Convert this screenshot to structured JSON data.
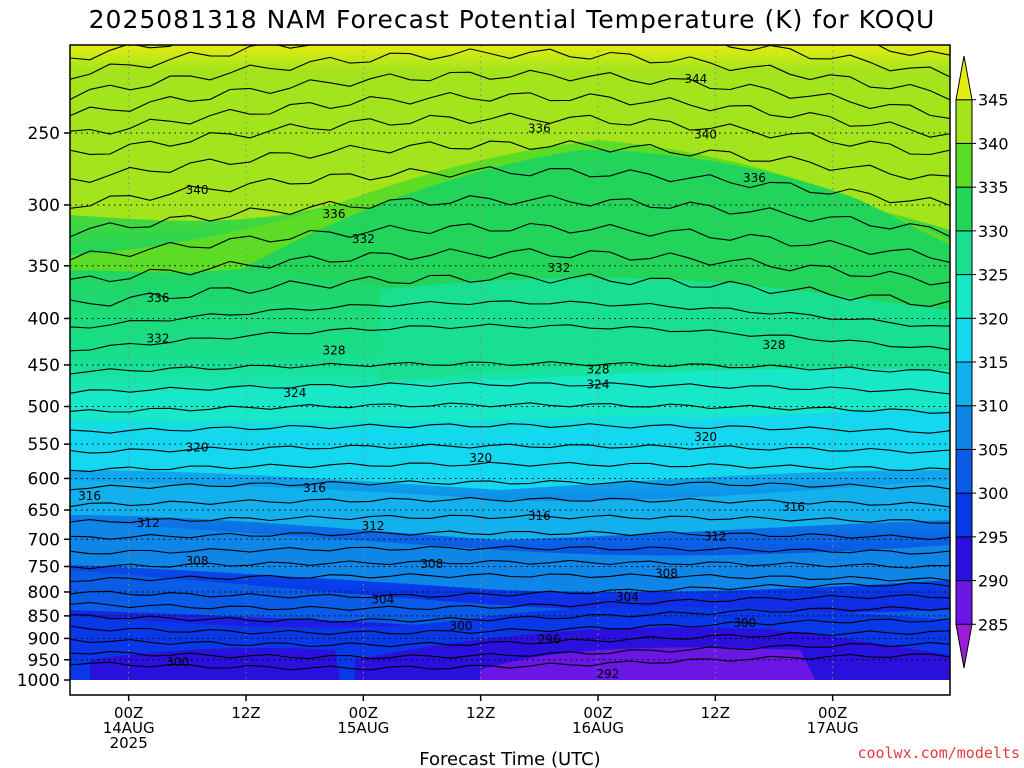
{
  "chart_data": {
    "type": "heatmap",
    "title": "2025081318 NAM Forecast Potential Temperature (K) for KOQU",
    "xlabel": "Forecast Time (UTC)",
    "ylabel": "",
    "variable": "Potential Temperature (K)",
    "y_axis": {
      "scale": "log",
      "reversed": true,
      "range": [
        1000,
        200
      ],
      "ticks": [
        "250",
        "300",
        "350",
        "400",
        "450",
        "500",
        "550",
        "600",
        "650",
        "700",
        "750",
        "800",
        "850",
        "900",
        "950",
        "1000"
      ]
    },
    "x_axis": {
      "range_hours": [
        -6,
        84
      ],
      "ticks": [
        {
          "hour": 0,
          "lines": [
            "00Z",
            "14AUG",
            "2025"
          ]
        },
        {
          "hour": 12,
          "lines": [
            "12Z"
          ]
        },
        {
          "hour": 24,
          "lines": [
            "00Z",
            "15AUG"
          ]
        },
        {
          "hour": 36,
          "lines": [
            "12Z"
          ]
        },
        {
          "hour": 48,
          "lines": [
            "00Z",
            "16AUG"
          ]
        },
        {
          "hour": 60,
          "lines": [
            "12Z"
          ]
        },
        {
          "hour": 72,
          "lines": [
            "00Z",
            "17AUG"
          ]
        }
      ]
    },
    "colorbar": {
      "levels": [
        285,
        290,
        295,
        300,
        305,
        310,
        315,
        320,
        325,
        330,
        335,
        340,
        345
      ],
      "colors": [
        "#9a1bd8",
        "#6a16e4",
        "#2a10dc",
        "#0838e8",
        "#0a5ce6",
        "#0d86e8",
        "#12b0ec",
        "#14d8f0",
        "#17e8c8",
        "#18e090",
        "#22d45a",
        "#5cdc24",
        "#a4e41c",
        "#e4ec10"
      ]
    },
    "contour_labels": [
      {
        "label": "344",
        "hour": 58,
        "p": 218
      },
      {
        "label": "340",
        "hour": 59,
        "p": 251
      },
      {
        "label": "336",
        "hour": 42,
        "p": 247
      },
      {
        "label": "340",
        "hour": 7,
        "p": 289
      },
      {
        "label": "336",
        "hour": 21,
        "p": 307
      },
      {
        "label": "336",
        "hour": 64,
        "p": 280
      },
      {
        "label": "332",
        "hour": 24,
        "p": 327
      },
      {
        "label": "332",
        "hour": 44,
        "p": 352
      },
      {
        "label": "336",
        "hour": 3,
        "p": 380
      },
      {
        "label": "332",
        "hour": 3,
        "p": 421
      },
      {
        "label": "328",
        "hour": 21,
        "p": 434
      },
      {
        "label": "328",
        "hour": 48,
        "p": 455
      },
      {
        "label": "328",
        "hour": 66,
        "p": 428
      },
      {
        "label": "324",
        "hour": 17,
        "p": 483
      },
      {
        "label": "324",
        "hour": 48,
        "p": 473
      },
      {
        "label": "320",
        "hour": 7,
        "p": 555
      },
      {
        "label": "320",
        "hour": 36,
        "p": 570
      },
      {
        "label": "320",
        "hour": 59,
        "p": 540
      },
      {
        "label": "316",
        "hour": -4,
        "p": 627
      },
      {
        "label": "316",
        "hour": 19,
        "p": 615
      },
      {
        "label": "316",
        "hour": 42,
        "p": 660
      },
      {
        "label": "316",
        "hour": 68,
        "p": 645
      },
      {
        "label": "312",
        "hour": 2,
        "p": 672
      },
      {
        "label": "312",
        "hour": 25,
        "p": 677
      },
      {
        "label": "312",
        "hour": 60,
        "p": 695
      },
      {
        "label": "308",
        "hour": 7,
        "p": 740
      },
      {
        "label": "308",
        "hour": 31,
        "p": 745
      },
      {
        "label": "308",
        "hour": 55,
        "p": 763
      },
      {
        "label": "304",
        "hour": 26,
        "p": 815
      },
      {
        "label": "304",
        "hour": 51,
        "p": 810
      },
      {
        "label": "300",
        "hour": 34,
        "p": 872
      },
      {
        "label": "300",
        "hour": 63,
        "p": 866
      },
      {
        "label": "296",
        "hour": 43,
        "p": 902
      },
      {
        "label": "300",
        "hour": 5,
        "p": 955
      },
      {
        "label": "292",
        "hour": 49,
        "p": 985
      }
    ],
    "grid": true
  },
  "credit": "coolwx.com/modelts"
}
